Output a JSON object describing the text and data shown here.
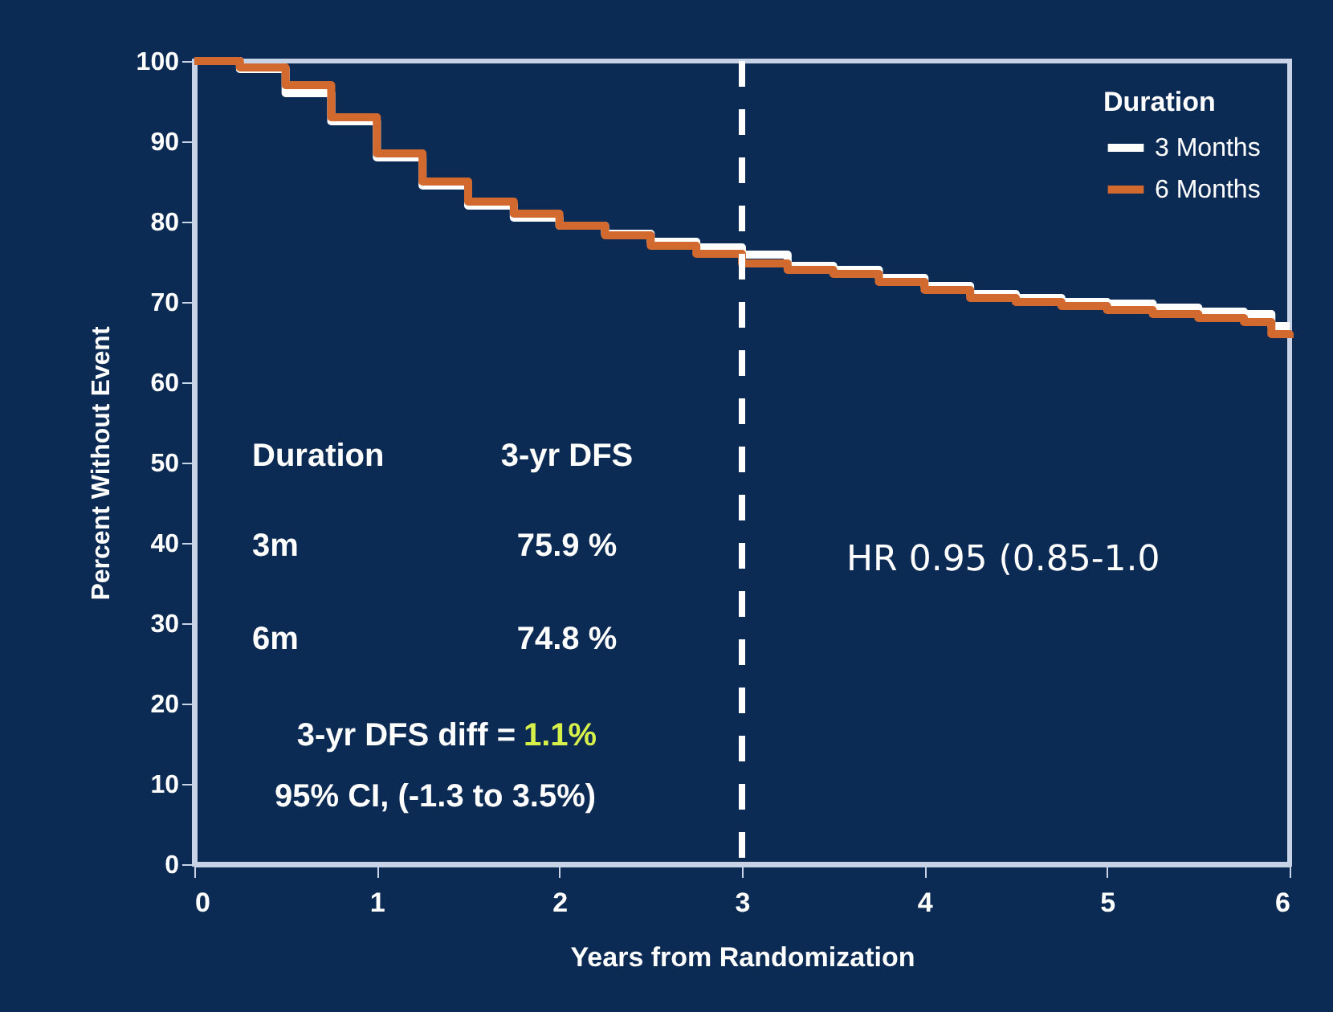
{
  "chart_data": {
    "type": "step",
    "xlabel": "Years from Randomization",
    "ylabel": "Percent Without Event",
    "legend_title": "Duration",
    "xlim": [
      0,
      6
    ],
    "ylim": [
      0,
      100
    ],
    "xticks": [
      0,
      1,
      2,
      3,
      4,
      5,
      6
    ],
    "yticks": [
      0,
      10,
      20,
      30,
      40,
      50,
      60,
      70,
      80,
      90,
      100
    ],
    "x": [
      0,
      0.25,
      0.5,
      0.75,
      1,
      1.25,
      1.5,
      1.75,
      2,
      2.25,
      2.5,
      2.75,
      3,
      3.25,
      3.5,
      3.75,
      4,
      4.25,
      4.5,
      4.75,
      5,
      5.25,
      5.5,
      5.75,
      5.9,
      6
    ],
    "series": [
      {
        "name": "3 Months",
        "color": "#ffffff",
        "values": [
          100,
          99,
          96,
          92.5,
          88,
          84.5,
          82,
          80.5,
          79.5,
          78.5,
          77.5,
          76.8,
          75.9,
          74.5,
          74,
          73,
          72,
          71,
          70.5,
          70,
          69.8,
          69.3,
          68.8,
          68.5,
          67,
          67
        ]
      },
      {
        "name": "6 Months",
        "color": "#d2692e",
        "values": [
          100,
          99.2,
          97,
          93,
          88.5,
          85,
          82.5,
          81,
          79.5,
          78.3,
          77,
          76,
          74.8,
          74,
          73.5,
          72.5,
          71.5,
          70.5,
          70,
          69.5,
          69,
          68.5,
          68,
          67.5,
          66,
          65.5
        ]
      }
    ],
    "ref_lines": [
      {
        "axis": "x",
        "value": 3,
        "line_style": "dashed",
        "color": "#ffffff"
      }
    ],
    "annotations": [
      "Duration",
      "3-yr DFS",
      "3m",
      "75.9 %",
      "6m",
      "74.8 %",
      "3-yr DFS diff =",
      "1.1%",
      "95% CI, (-1.3 to 3.5%)",
      "HR 0.95 (0.85-1.0"
    ],
    "legend": "top right",
    "grid": false,
    "line_style": "solid",
    "marker": "none"
  }
}
